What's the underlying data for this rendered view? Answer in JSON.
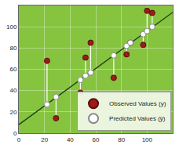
{
  "chart_data": {
    "type": "scatter",
    "x": [
      22,
      29,
      48,
      52,
      56,
      74,
      84,
      87,
      97,
      100,
      104
    ],
    "series": [
      {
        "name": "Observed Values (y)",
        "color": "#9e1b1b",
        "marker": "circle",
        "values": [
          68,
          14,
          38,
          71,
          85,
          52,
          74,
          85,
          83,
          115,
          113
        ]
      },
      {
        "name": "Predicted Values (ŷ)",
        "color": "#ffffff",
        "marker": "circle",
        "values": [
          27,
          34,
          50,
          54,
          57,
          73,
          82,
          85,
          93,
          96,
          100
        ]
      },
      {
        "type": "line",
        "color": "#1e3d14",
        "line_style": "solid",
        "x": [
          0,
          120
        ],
        "values": [
          8,
          113.6
        ]
      }
    ],
    "xlim": [
      0,
      120
    ],
    "ylim": [
      0,
      120
    ],
    "xticks": [
      0,
      20,
      40,
      60,
      80,
      100
    ],
    "yticks": [
      0,
      20,
      40,
      60,
      80,
      100
    ],
    "grid": true,
    "legend": "bottom right"
  }
}
